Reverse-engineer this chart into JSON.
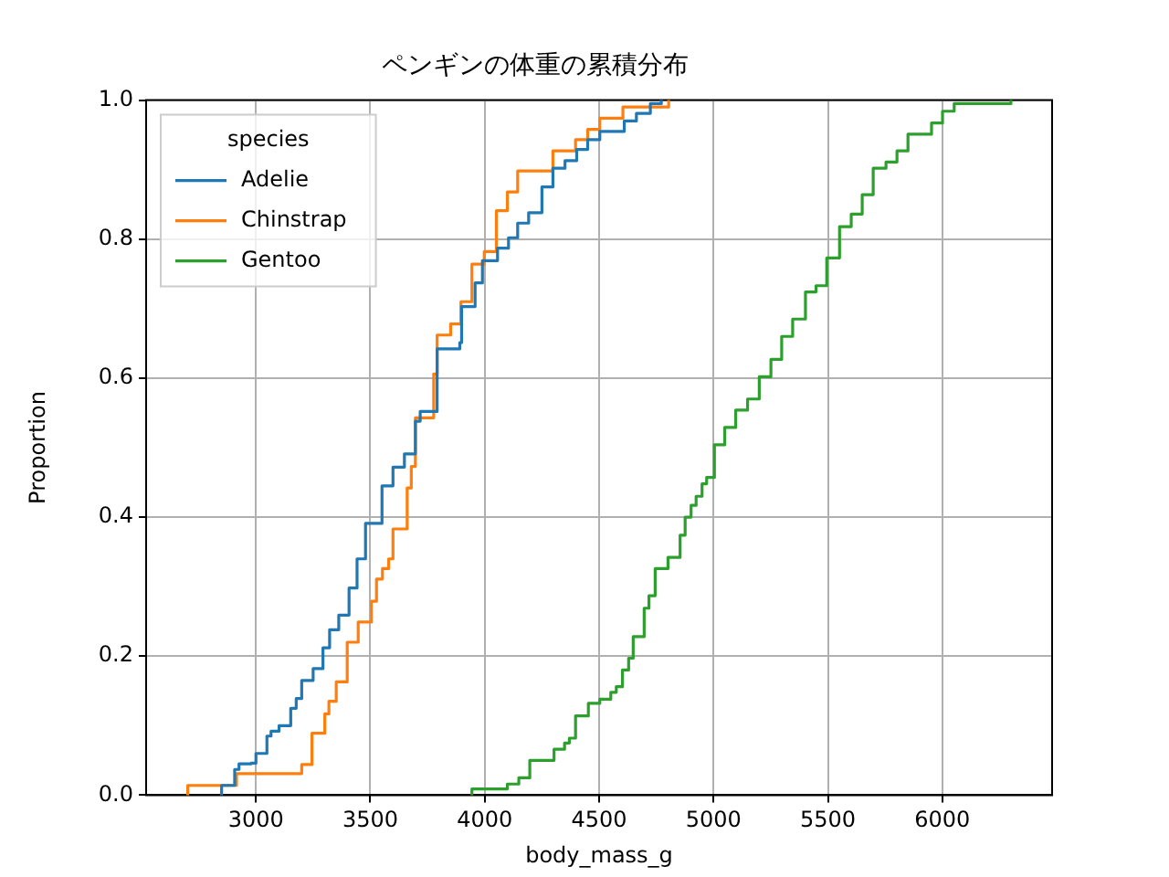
{
  "chart_data": {
    "type": "step",
    "title": "ペンギンの体重の累積分布",
    "xlabel": "body_mass_g",
    "ylabel": "Proportion",
    "legend_title": "species",
    "legend": "top left",
    "grid": true,
    "xlim": [
      2520,
      6480
    ],
    "xticks": [
      3000,
      3500,
      4000,
      4500,
      5000,
      5500,
      6000
    ],
    "ylim": [
      0,
      1
    ],
    "yticks": [
      {
        "value": 0,
        "label": "0.0"
      },
      {
        "value": 0.2,
        "label": "0.2"
      },
      {
        "value": 0.4,
        "label": "0.4"
      },
      {
        "value": 0.6,
        "label": "0.6"
      },
      {
        "value": 0.8,
        "label": "0.8"
      },
      {
        "value": 1,
        "label": "1.0"
      }
    ],
    "series": [
      {
        "name": "Adelie",
        "color": "#1f77b4",
        "x": [
          2850,
          2850,
          2907,
          2926,
          2979,
          3000,
          3048,
          3066,
          3101,
          3152,
          3176,
          3200,
          3250,
          3293,
          3322,
          3362,
          3407,
          3442,
          3479,
          3551,
          3599,
          3649,
          3697,
          3718,
          3792,
          3891,
          3899,
          3958,
          3990,
          4056,
          4104,
          4144,
          4192,
          4250,
          4298,
          4351,
          4402,
          4450,
          4503,
          4610,
          4663,
          4724,
          4772
        ],
        "values": [
          0,
          0.014,
          0.037,
          0.045,
          0.046,
          0.06,
          0.085,
          0.092,
          0.1,
          0.125,
          0.139,
          0.165,
          0.182,
          0.212,
          0.238,
          0.259,
          0.298,
          0.34,
          0.391,
          0.445,
          0.472,
          0.491,
          0.538,
          0.552,
          0.642,
          0.651,
          0.703,
          0.737,
          0.769,
          0.787,
          0.802,
          0.823,
          0.838,
          0.875,
          0.902,
          0.913,
          0.929,
          0.943,
          0.955,
          0.97,
          0.981,
          0.995,
          1
        ]
      },
      {
        "name": "Chinstrap",
        "color": "#ff7f0e",
        "x": [
          2702,
          2702,
          2915,
          3200,
          3245,
          3301,
          3319,
          3351,
          3399,
          3447,
          3505,
          3527,
          3553,
          3580,
          3599,
          3661,
          3679,
          3697,
          3777,
          3792,
          3851,
          3896,
          3944,
          3998,
          4051,
          4099,
          4144,
          4298,
          4397,
          4450,
          4503,
          4604,
          4804
        ],
        "values": [
          0,
          0.014,
          0.031,
          0.044,
          0.089,
          0.117,
          0.135,
          0.163,
          0.22,
          0.249,
          0.279,
          0.311,
          0.326,
          0.34,
          0.383,
          0.442,
          0.473,
          0.543,
          0.606,
          0.662,
          0.678,
          0.71,
          0.764,
          0.782,
          0.841,
          0.868,
          0.898,
          0.927,
          0.943,
          0.958,
          0.974,
          0.99,
          1
        ]
      },
      {
        "name": "Gentoo",
        "color": "#2ca02c",
        "x": [
          3944,
          3944,
          4099,
          4149,
          4197,
          4303,
          4349,
          4370,
          4397,
          4453,
          4503,
          4551,
          4575,
          4602,
          4629,
          4649,
          4697,
          4718,
          4745,
          4801,
          4854,
          4876,
          4902,
          4924,
          4950,
          4970,
          5004,
          5049,
          5097,
          5149,
          5200,
          5251,
          5298,
          5346,
          5402,
          5448,
          5495,
          5551,
          5602,
          5650,
          5698,
          5754,
          5802,
          5850,
          5953,
          6001,
          6052,
          6300
        ],
        "values": [
          0,
          0.009,
          0.016,
          0.025,
          0.05,
          0.066,
          0.075,
          0.082,
          0.114,
          0.132,
          0.138,
          0.148,
          0.156,
          0.18,
          0.197,
          0.228,
          0.269,
          0.287,
          0.326,
          0.342,
          0.374,
          0.4,
          0.417,
          0.43,
          0.448,
          0.457,
          0.504,
          0.529,
          0.554,
          0.57,
          0.602,
          0.627,
          0.66,
          0.685,
          0.724,
          0.733,
          0.773,
          0.818,
          0.836,
          0.864,
          0.902,
          0.911,
          0.927,
          0.951,
          0.967,
          0.984,
          0.995,
          1
        ]
      }
    ]
  }
}
